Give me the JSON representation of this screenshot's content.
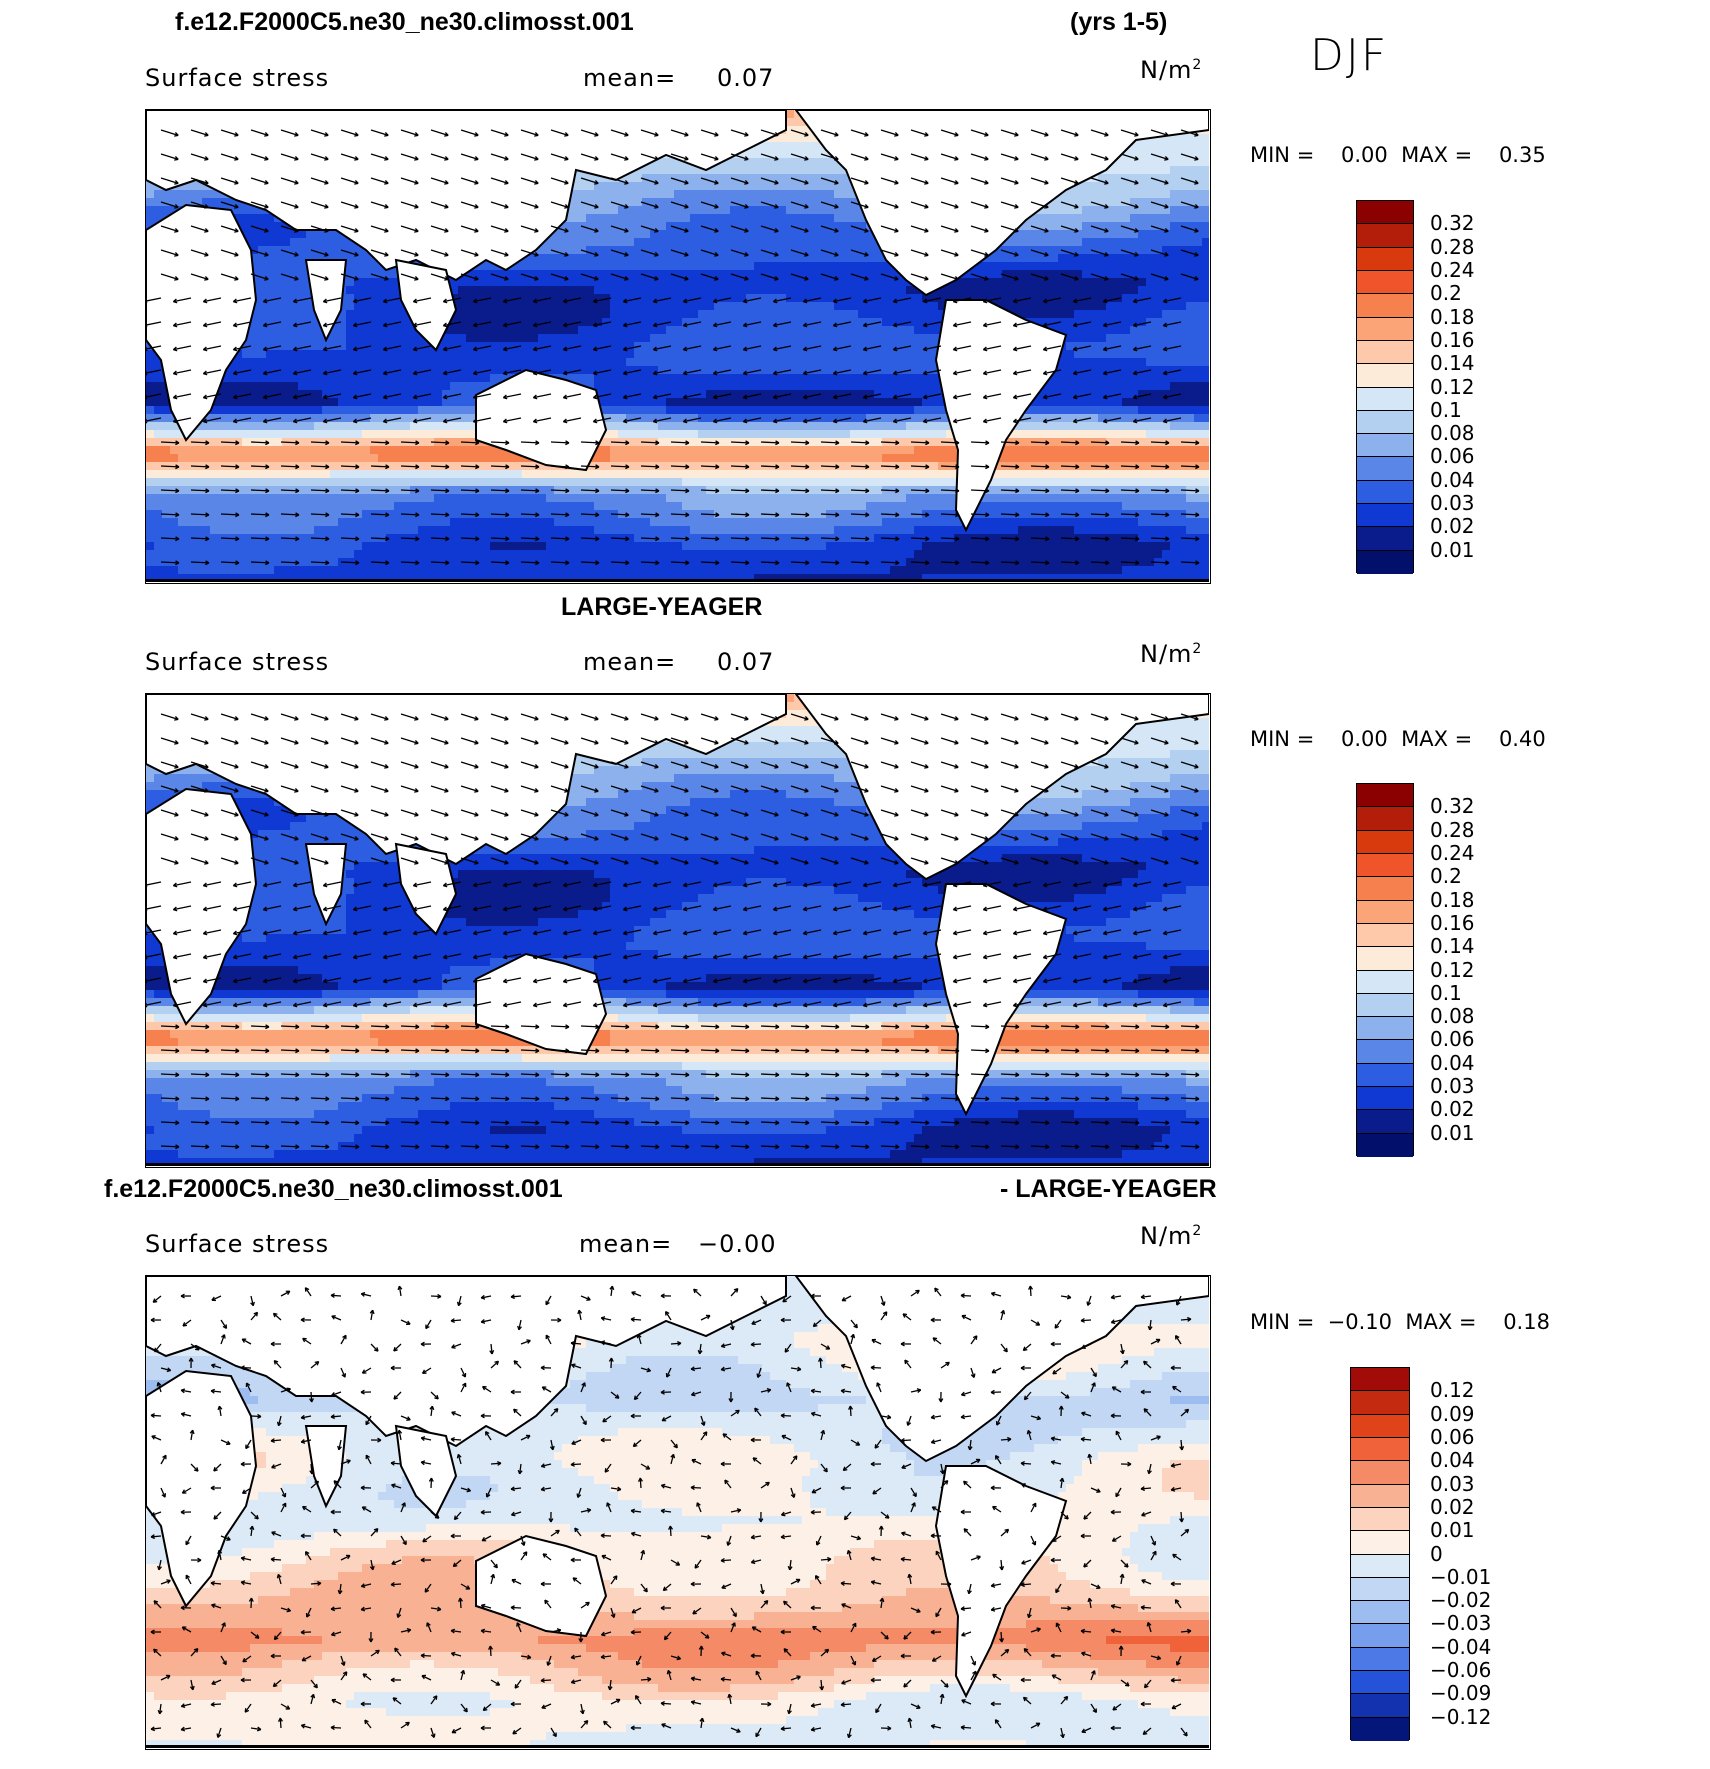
{
  "header": {
    "case_title": "f.e12.F2000C5.ne30_ne30.climosst.001",
    "years": "(yrs 1-5)",
    "season": "DJF"
  },
  "panels": [
    {
      "id": "model",
      "heading": "",
      "variable": "Surface stress",
      "mean_label": "mean=",
      "mean_value": "0.07",
      "units": "N/m",
      "units_sup": "2",
      "min_max": "MIN =    0.00  MAX =    0.35",
      "palette": "abs",
      "levels": [
        "0.32",
        "0.28",
        "0.24",
        "0.2",
        "0.18",
        "0.16",
        "0.14",
        "0.12",
        "0.1",
        "0.08",
        "0.06",
        "0.04",
        "0.03",
        "0.02",
        "0.01"
      ]
    },
    {
      "id": "obs",
      "heading": "LARGE-YEAGER",
      "variable": "Surface stress",
      "mean_label": "mean=",
      "mean_value": "0.07",
      "units": "N/m",
      "units_sup": "2",
      "min_max": "MIN =    0.00  MAX =    0.40",
      "palette": "abs",
      "levels": [
        "0.32",
        "0.28",
        "0.24",
        "0.2",
        "0.18",
        "0.16",
        "0.14",
        "0.12",
        "0.1",
        "0.08",
        "0.06",
        "0.04",
        "0.03",
        "0.02",
        "0.01"
      ]
    },
    {
      "id": "diff",
      "heading_left": "f.e12.F2000C5.ne30_ne30.climosst.001",
      "heading_right": "- LARGE-YEAGER",
      "variable": "Surface stress",
      "mean_label": "mean=",
      "mean_value": "−0.00",
      "units": "N/m",
      "units_sup": "2",
      "min_max": "MIN =  −0.10  MAX =    0.18",
      "palette": "diff",
      "levels": [
        "0.12",
        "0.09",
        "0.06",
        "0.04",
        "0.03",
        "0.02",
        "0.01",
        "0",
        "−0.01",
        "−0.02",
        "−0.03",
        "−0.04",
        "−0.06",
        "−0.09",
        "−0.12"
      ]
    }
  ],
  "colors": {
    "abs_palette": [
      "#8b0000",
      "#b31e0b",
      "#d83a0e",
      "#f0542a",
      "#f7804f",
      "#fba478",
      "#fdc9aa",
      "#fdebd9",
      "#d5e6f7",
      "#b4d0f1",
      "#8db1ec",
      "#5a86e8",
      "#2d5ee2",
      "#1038d2",
      "#0a1b8c",
      "#03106b"
    ],
    "diff_palette": [
      "#a10c08",
      "#c42a10",
      "#e0421a",
      "#f0633a",
      "#f58a66",
      "#f9b193",
      "#fcd3bf",
      "#fdf0e6",
      "#dce9f7",
      "#c1d7f4",
      "#9dbdf0",
      "#779ded",
      "#4d79e6",
      "#2452d8",
      "#1232b0",
      "#05167a"
    ],
    "land": "#ffffff",
    "coast": "#000000",
    "arrow": "#000000"
  }
}
